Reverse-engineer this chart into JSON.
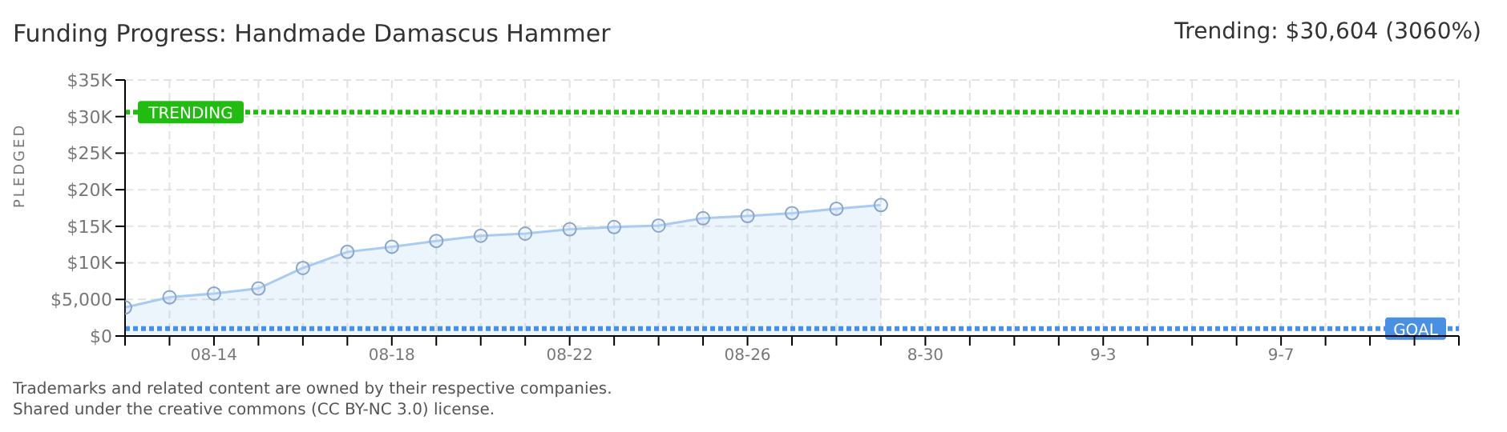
{
  "chart_data": {
    "type": "area",
    "title": "Funding Progress: Handmade Damascus Hammer",
    "ylabel": "PLEDGED",
    "annotations": [
      "Trending: $30,604 (3060%)",
      "Trademarks and related content are owned by their respective companies.",
      "Shared under the creative commons (CC BY-NC 3.0) license."
    ],
    "categories": [
      null,
      null,
      "08-14",
      null,
      null,
      null,
      "08-18",
      null,
      null,
      null,
      "08-22",
      null,
      null,
      null,
      "08-26",
      null,
      null,
      null,
      "8-30",
      null,
      null,
      null,
      "9-3",
      null,
      null,
      null,
      "9-7",
      null,
      null,
      null,
      null
    ],
    "series": [
      {
        "color": "#a9cbf2",
        "values": [
          3900,
          5300,
          5800,
          6500,
          9300,
          11500,
          12200,
          13000,
          13700,
          14000,
          14600,
          14900,
          15100,
          16100,
          16400,
          16800,
          17400,
          17900,
          null,
          null,
          null,
          null,
          null,
          null,
          null,
          null,
          null,
          null,
          null,
          null,
          null
        ]
      }
    ],
    "ylim": [
      0,
      35000
    ],
    "yticks": [
      {
        "value": 0,
        "label": "$0"
      },
      {
        "value": 5000,
        "label": "$5,000"
      },
      {
        "value": 10000,
        "label": "$10K"
      },
      {
        "value": 15000,
        "label": "$15K"
      },
      {
        "value": 20000,
        "label": "$20K"
      },
      {
        "value": 25000,
        "label": "$25K"
      },
      {
        "value": 30000,
        "label": "$30K"
      },
      {
        "value": 35000,
        "label": "$35K"
      }
    ],
    "ref_lines": [
      {
        "axis": "y",
        "value": 30604,
        "label": "TRENDING",
        "color": "#22bb11",
        "line_style": "dotted"
      },
      {
        "axis": "y",
        "value": 1000,
        "label": "GOAL",
        "color": "#4a90e2",
        "line_style": "dotted"
      }
    ],
    "grid": true,
    "marker": "circle"
  }
}
